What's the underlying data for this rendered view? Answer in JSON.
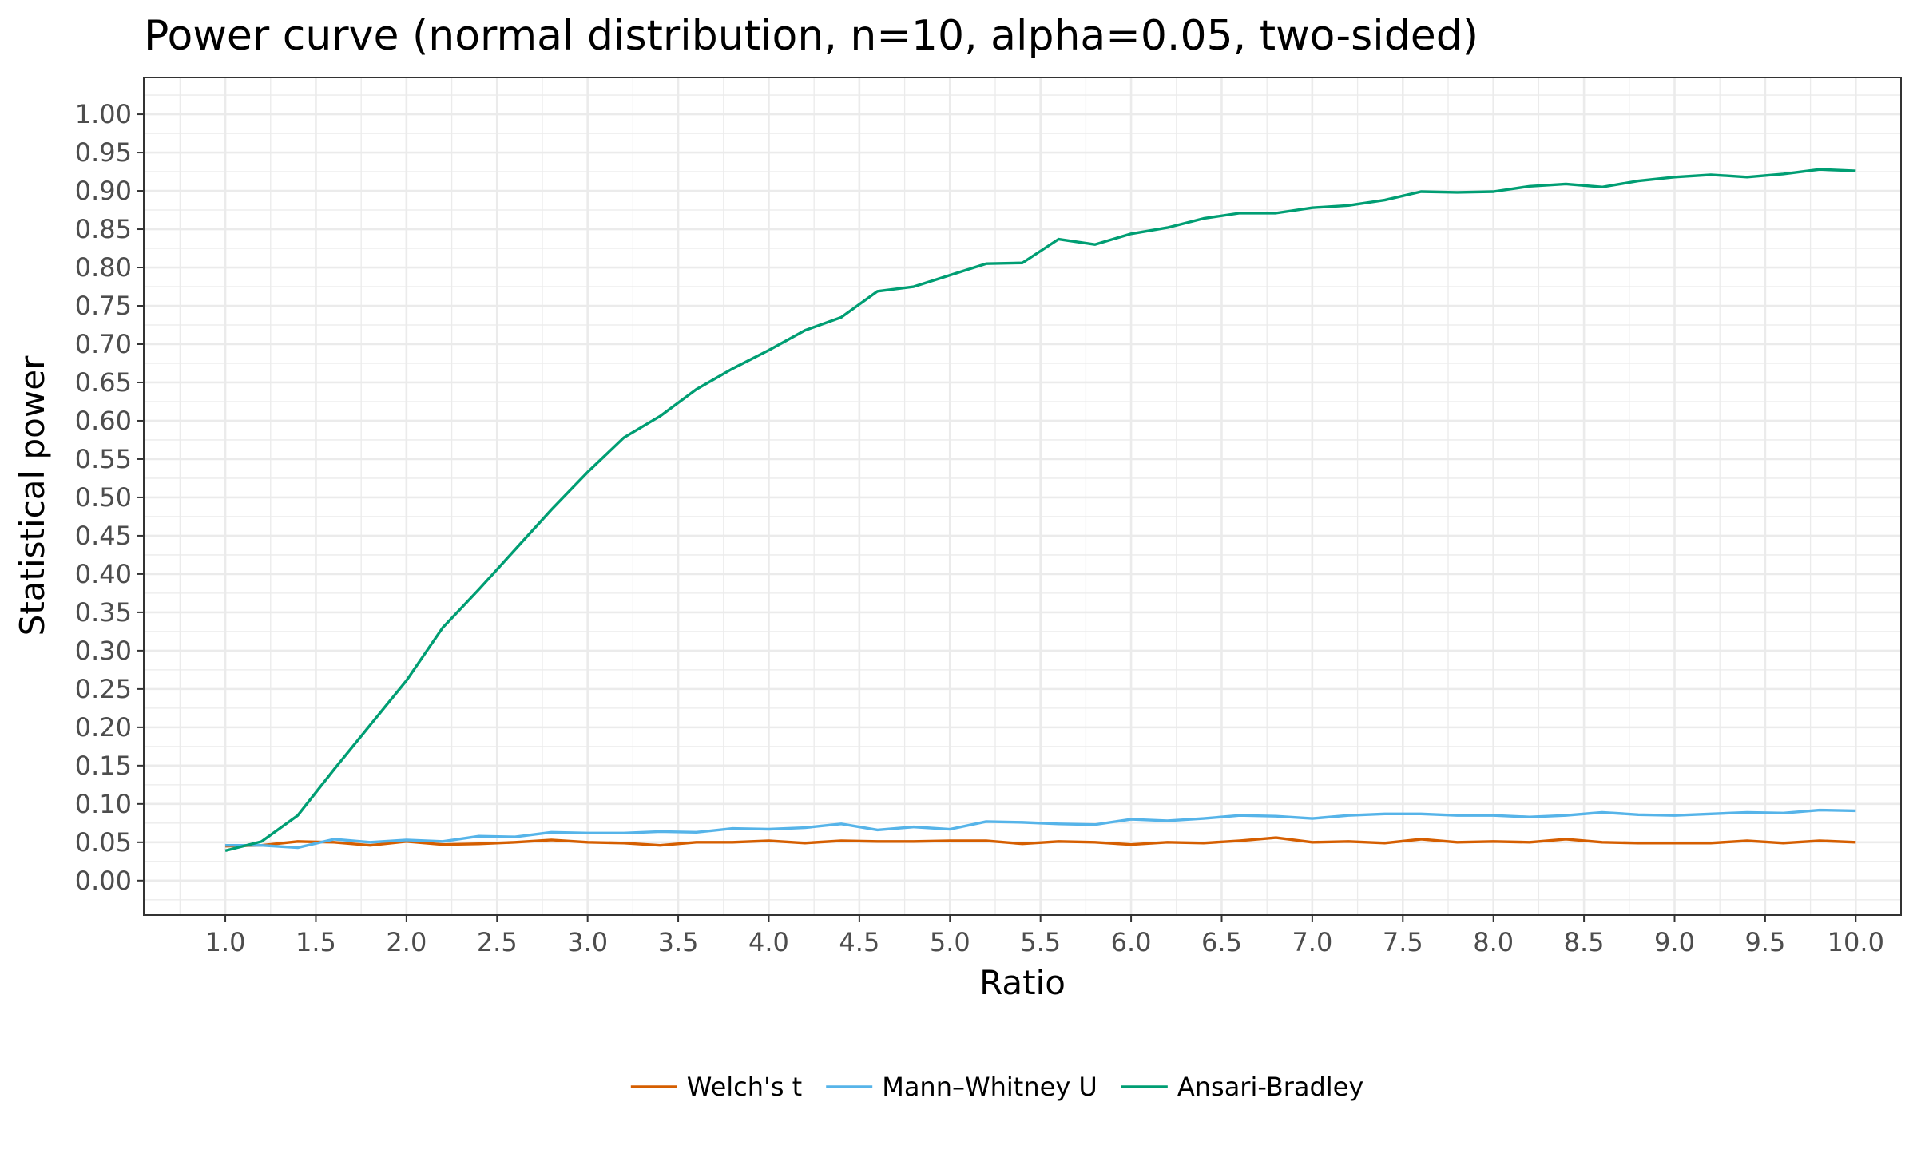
{
  "chart_data": {
    "type": "line",
    "title": "Power curve (normal distribution, n=10, alpha=0.05, two-sided)",
    "xlabel": "Ratio",
    "ylabel": "Statistical power",
    "xlim": [
      0.55,
      10.25
    ],
    "ylim": [
      -0.045,
      1.048
    ],
    "x_ticks": [
      1.0,
      1.5,
      2.0,
      2.5,
      3.0,
      3.5,
      4.0,
      4.5,
      5.0,
      5.5,
      6.0,
      6.5,
      7.0,
      7.5,
      8.0,
      8.5,
      9.0,
      9.5,
      10.0
    ],
    "x_tick_labels": [
      "1.0",
      "1.5",
      "2.0",
      "2.5",
      "3.0",
      "3.5",
      "4.0",
      "4.5",
      "5.0",
      "5.5",
      "6.0",
      "6.5",
      "7.0",
      "7.5",
      "8.0",
      "8.5",
      "9.0",
      "9.5",
      "10.0"
    ],
    "y_ticks": [
      0.0,
      0.05,
      0.1,
      0.15,
      0.2,
      0.25,
      0.3,
      0.35,
      0.4,
      0.45,
      0.5,
      0.55,
      0.6,
      0.65,
      0.7,
      0.75,
      0.8,
      0.85,
      0.9,
      0.95,
      1.0
    ],
    "y_tick_labels": [
      "0.00",
      "0.05",
      "0.10",
      "0.15",
      "0.20",
      "0.25",
      "0.30",
      "0.35",
      "0.40",
      "0.45",
      "0.50",
      "0.55",
      "0.60",
      "0.65",
      "0.70",
      "0.75",
      "0.80",
      "0.85",
      "0.90",
      "0.95",
      "1.00"
    ],
    "grid": true,
    "legend_position": "bottom",
    "x": [
      1.0,
      1.2,
      1.4,
      1.6,
      1.8,
      2.0,
      2.2,
      2.4,
      2.6,
      2.8,
      3.0,
      3.2,
      3.4,
      3.6,
      3.8,
      4.0,
      4.2,
      4.4,
      4.6,
      4.8,
      5.0,
      5.2,
      5.4,
      5.6,
      5.8,
      6.0,
      6.2,
      6.4,
      6.6,
      6.8,
      7.0,
      7.2,
      7.4,
      7.6,
      7.8,
      8.0,
      8.2,
      8.4,
      8.6,
      8.8,
      9.0,
      9.2,
      9.4,
      9.6,
      9.8,
      10.0
    ],
    "series": [
      {
        "name": "Welch's t",
        "color": "#d55e00",
        "values": [
          0.045,
          0.046,
          0.051,
          0.05,
          0.046,
          0.051,
          0.047,
          0.048,
          0.05,
          0.053,
          0.05,
          0.049,
          0.046,
          0.05,
          0.05,
          0.052,
          0.049,
          0.052,
          0.051,
          0.051,
          0.052,
          0.052,
          0.048,
          0.051,
          0.05,
          0.047,
          0.05,
          0.049,
          0.052,
          0.056,
          0.05,
          0.051,
          0.049,
          0.054,
          0.05,
          0.051,
          0.05,
          0.054,
          0.05,
          0.049,
          0.049,
          0.049,
          0.052,
          0.049,
          0.052,
          0.05
        ]
      },
      {
        "name": "Mann–Whitney U",
        "color": "#56b4e9",
        "values": [
          0.046,
          0.046,
          0.043,
          0.054,
          0.05,
          0.053,
          0.051,
          0.058,
          0.057,
          0.063,
          0.062,
          0.062,
          0.064,
          0.063,
          0.068,
          0.067,
          0.069,
          0.074,
          0.066,
          0.07,
          0.067,
          0.077,
          0.076,
          0.074,
          0.073,
          0.08,
          0.078,
          0.081,
          0.085,
          0.084,
          0.081,
          0.085,
          0.087,
          0.087,
          0.085,
          0.085,
          0.083,
          0.085,
          0.089,
          0.086,
          0.085,
          0.087,
          0.089,
          0.088,
          0.092,
          0.091
        ]
      },
      {
        "name": "Ansari-Bradley",
        "color": "#009e73",
        "values": [
          0.039,
          0.051,
          0.085,
          0.145,
          0.203,
          0.261,
          0.33,
          0.38,
          0.432,
          0.484,
          0.533,
          0.578,
          0.606,
          0.641,
          0.668,
          0.692,
          0.718,
          0.735,
          0.769,
          0.775,
          0.79,
          0.805,
          0.806,
          0.837,
          0.83,
          0.844,
          0.852,
          0.864,
          0.871,
          0.871,
          0.878,
          0.881,
          0.888,
          0.899,
          0.898,
          0.899,
          0.906,
          0.909,
          0.905,
          0.913,
          0.918,
          0.921,
          0.918,
          0.922,
          0.928,
          0.926
        ]
      }
    ]
  }
}
